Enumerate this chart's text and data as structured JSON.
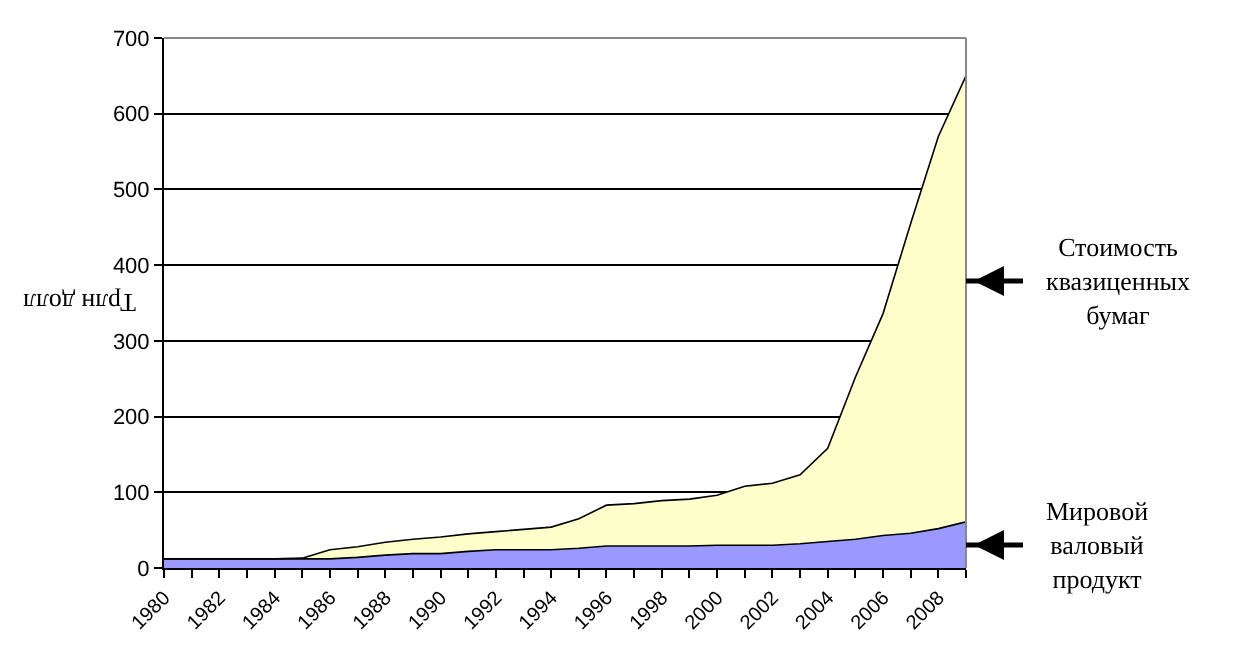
{
  "chart_data": {
    "type": "area",
    "stacked": true,
    "ylabel": "Трлн долл",
    "x": [
      1980,
      1981,
      1982,
      1983,
      1984,
      1985,
      1986,
      1987,
      1988,
      1989,
      1990,
      1991,
      1992,
      1993,
      1994,
      1995,
      1996,
      1997,
      1998,
      1999,
      2000,
      2001,
      2002,
      2003,
      2004,
      2005,
      2006,
      2007,
      2008,
      2009
    ],
    "series": [
      {
        "name": "Мировой валовый продукт",
        "color": "#9999ff",
        "values": [
          12,
          12,
          12,
          12,
          12,
          12,
          12,
          14,
          17,
          19,
          19,
          22,
          24,
          24,
          24,
          26,
          29,
          29,
          29,
          29,
          30,
          30,
          30,
          32,
          35,
          38,
          43,
          46,
          52,
          61
        ]
      },
      {
        "name": "Стоимость квазиценных бумаг",
        "color": "#ffffcc",
        "values": [
          0,
          0,
          0,
          0,
          0,
          1,
          12,
          14,
          17,
          19,
          22,
          23,
          24,
          27,
          30,
          39,
          54,
          56,
          60,
          62,
          66,
          78,
          82,
          91,
          123,
          214,
          293,
          409,
          518,
          589
        ]
      }
    ],
    "xlim": [
      1980,
      2009
    ],
    "xticks": [
      1980,
      1982,
      1984,
      1986,
      1988,
      1990,
      1992,
      1994,
      1996,
      1998,
      2000,
      2002,
      2004,
      2006,
      2008
    ],
    "ylim": [
      0,
      700
    ],
    "yticks": [
      0,
      100,
      200,
      300,
      400,
      500,
      600,
      700
    ],
    "grid": "y",
    "legend": "right"
  }
}
